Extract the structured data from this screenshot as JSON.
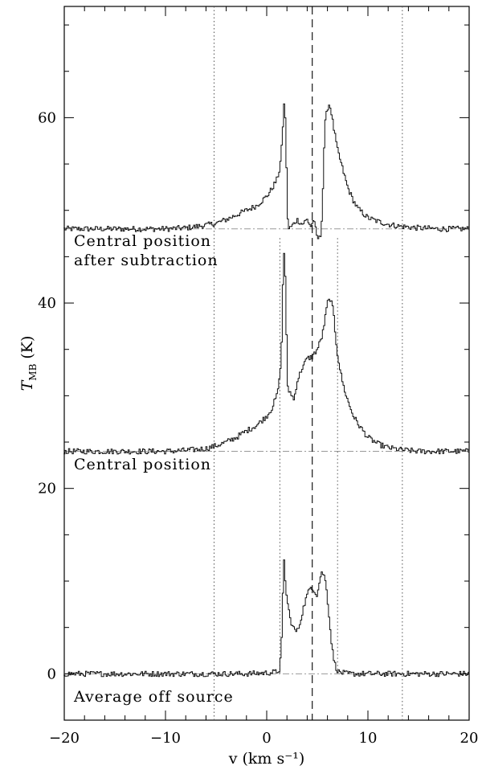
{
  "chart_data": {
    "type": "line",
    "title": "",
    "xlabel": "v (km s⁻¹)",
    "ylabel": "T_MB (K)",
    "ylabel_main": "T",
    "ylabel_sub": "MB",
    "ylabel_unit": "(K)",
    "xlim": [
      -20,
      20
    ],
    "ylim": [
      -5,
      72
    ],
    "x_ticks": [
      -20,
      -10,
      0,
      10,
      20
    ],
    "x_tick_labels": [
      "−20",
      "−10",
      "0",
      "10",
      "20"
    ],
    "y_ticks": [
      0,
      20,
      40,
      60
    ],
    "y_tick_labels": [
      "0",
      "20",
      "40",
      "60"
    ],
    "grid": false,
    "series": [
      {
        "name": "Central position after subtraction",
        "baseline": 48,
        "x": [
          -20,
          -15,
          -10,
          -8,
          -6,
          -5,
          -4,
          -3,
          -2,
          -1,
          0,
          0.5,
          1.0,
          1.3,
          1.5,
          1.7,
          1.8,
          1.9,
          2.0,
          2.1,
          2.2,
          2.5,
          3.0,
          3.5,
          4.0,
          4.4,
          4.6,
          4.8,
          5.0,
          5.3,
          5.5,
          5.6,
          5.7,
          5.8,
          6.0,
          6.2,
          6.4,
          6.6,
          6.8,
          7.0,
          7.5,
          8.0,
          8.5,
          9.0,
          10.0,
          11.0,
          12.0,
          13.0,
          15.0,
          17.0,
          20.0
        ],
        "values": [
          48,
          48,
          48,
          48.1,
          48.4,
          48.6,
          49.0,
          49.5,
          50.0,
          50.5,
          51.5,
          52.3,
          53.3,
          54.5,
          57.0,
          61.3,
          61.5,
          58.0,
          52.0,
          48.5,
          48.0,
          48.3,
          49.0,
          48.5,
          49.0,
          48.2,
          49.0,
          48.2,
          47.0,
          47.0,
          50.0,
          54.0,
          57.5,
          59.5,
          61.0,
          61.5,
          60.5,
          59.0,
          57.8,
          56.5,
          54.5,
          52.5,
          51.2,
          50.2,
          49.2,
          48.8,
          48.5,
          48.3,
          48.1,
          48.0,
          48.0
        ]
      },
      {
        "name": "Central position",
        "baseline": 24,
        "x": [
          -20,
          -15,
          -10,
          -8,
          -6,
          -5,
          -4,
          -3,
          -2,
          -1,
          0,
          0.5,
          1.0,
          1.3,
          1.5,
          1.6,
          1.7,
          1.8,
          1.9,
          2.0,
          2.1,
          2.2,
          2.4,
          2.7,
          3.0,
          3.5,
          4.0,
          4.5,
          5.0,
          5.5,
          5.8,
          6.0,
          6.3,
          6.6,
          6.8,
          7.0,
          7.3,
          7.6,
          8.0,
          8.5,
          9.0,
          10.0,
          11.0,
          12.0,
          13.0,
          15.0,
          17.0,
          20.0
        ],
        "values": [
          24,
          24,
          24,
          24.1,
          24.3,
          24.6,
          25.0,
          25.5,
          26.2,
          26.8,
          27.8,
          28.6,
          30.0,
          32.0,
          36.0,
          42.0,
          45.5,
          45.0,
          40.0,
          34.0,
          30.0,
          30.5,
          30.3,
          29.5,
          31.5,
          33.0,
          34.0,
          34.2,
          35.0,
          36.5,
          38.5,
          40.0,
          40.5,
          39.0,
          36.5,
          34.5,
          32.5,
          31.0,
          29.5,
          28.0,
          27.0,
          25.5,
          24.8,
          24.4,
          24.2,
          24.0,
          24.0,
          24.0
        ]
      },
      {
        "name": "Average off source",
        "baseline": 0,
        "x": [
          -20,
          -15,
          -10,
          -5,
          -2,
          0,
          1.0,
          1.3,
          1.5,
          1.6,
          1.7,
          1.8,
          1.9,
          2.0,
          2.1,
          2.3,
          2.6,
          3.0,
          3.3,
          3.6,
          4.0,
          4.4,
          4.7,
          5.0,
          5.3,
          5.5,
          5.7,
          5.9,
          6.1,
          6.3,
          6.5,
          6.7,
          6.9,
          7.1,
          7.5,
          8.0,
          10.0,
          13.0,
          15.0,
          20.0
        ],
        "values": [
          0,
          0,
          0,
          0,
          0,
          0.1,
          0.2,
          0.5,
          4.0,
          8.5,
          12.5,
          11.0,
          9.0,
          8.0,
          7.5,
          6.0,
          5.0,
          4.5,
          5.5,
          7.0,
          8.5,
          9.5,
          9.0,
          8.5,
          10.5,
          11.0,
          10.5,
          9.5,
          7.0,
          4.5,
          2.5,
          1.2,
          0.6,
          0.2,
          0.1,
          0,
          0,
          0,
          0,
          0
        ]
      }
    ],
    "annotations": [
      {
        "text": "Central position",
        "row": 0
      },
      {
        "text": "after subtraction",
        "row": 1
      },
      {
        "text": "Central position",
        "row": 2
      },
      {
        "text": "Average off source",
        "row": 3
      }
    ],
    "reference_lines": {
      "dashed_vertical": [
        4.5
      ],
      "dotted_vertical_full": [
        -5.2,
        13.4
      ],
      "dotted_vertical_short": [
        1.3,
        7.0
      ],
      "dashdot_horizontal": [
        0,
        24,
        48
      ]
    }
  }
}
